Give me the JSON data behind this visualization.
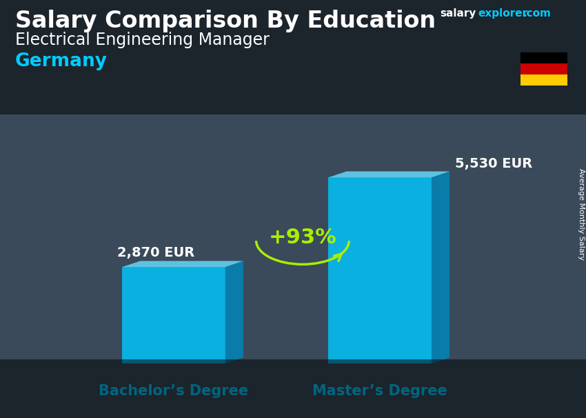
{
  "title_bold": "Salary Comparison By Education",
  "subtitle": "Electrical Engineering Manager",
  "country": "Germany",
  "categories": [
    "Bachelor’s Degree",
    "Master’s Degree"
  ],
  "values": [
    2870,
    5530
  ],
  "value_labels": [
    "2,870 EUR",
    "5,530 EUR"
  ],
  "bar_color_front": "#00C8FF",
  "bar_color_side": "#0088BB",
  "bar_color_top": "#66DDFF",
  "bar_alpha": 0.82,
  "pct_label": "+93%",
  "pct_color": "#AAEE00",
  "arrow_color": "#AAEE00",
  "text_color_white": "#FFFFFF",
  "text_color_cyan": "#00CCFF",
  "ylabel_rotated": "Average Monthly Salary",
  "title_fontsize": 24,
  "subtitle_fontsize": 17,
  "country_fontsize": 19,
  "value_label_fontsize": 13,
  "cat_label_fontsize": 14,
  "flag_colors": [
    "#000000",
    "#CC0000",
    "#FFCC00"
  ],
  "bg_color": "#3a4a5a",
  "overlay_alpha": 0.55
}
